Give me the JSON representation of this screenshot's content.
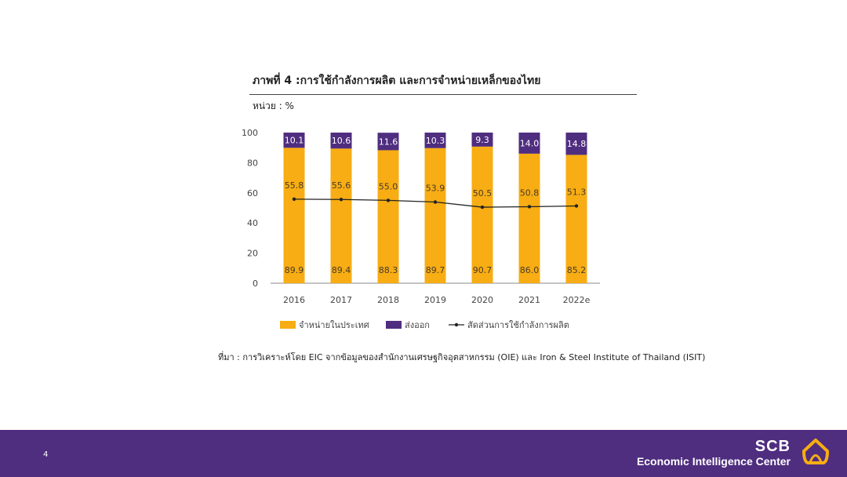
{
  "header": {
    "title": "ภาพที่ 4 :การใช้กำลังการผลิต และการจำหน่ายเหล็กของไทย",
    "unit": "หน่วย : %"
  },
  "source": "ที่มา : การวิเคราะห์โดย EIC จากข้อมูลของสำนักงานเศรษฐกิจอุตสาหกรรม (OIE) และ Iron & Steel Institute of Thailand (ISIT)",
  "footer": {
    "page_number": "4",
    "brand_name": "SCB",
    "brand_subtitle": "Economic Intelligence Center"
  },
  "colors": {
    "domestic": "#f7ad13",
    "export": "#4f2d7f",
    "line": "#222222",
    "footer_bg": "#4f2d7f",
    "logo": "#f7ad13"
  },
  "chart_data": {
    "type": "bar",
    "stacked": true,
    "categories": [
      "2016",
      "2017",
      "2018",
      "2019",
      "2020",
      "2021",
      "2022e"
    ],
    "series": [
      {
        "name": "จำหน่ายในประเทศ",
        "type": "bar",
        "values": [
          89.9,
          89.4,
          88.3,
          89.7,
          90.7,
          86.0,
          85.2
        ]
      },
      {
        "name": "ส่งออก",
        "type": "bar",
        "values": [
          10.1,
          10.6,
          11.6,
          10.3,
          9.3,
          14.0,
          14.8
        ]
      },
      {
        "name": "สัดส่วนการใช้กำลังการผลิต",
        "type": "line",
        "values": [
          55.8,
          55.6,
          55.0,
          53.9,
          50.5,
          50.8,
          51.3
        ]
      }
    ],
    "ylim": [
      0,
      100
    ],
    "yticks": [
      0,
      20,
      40,
      60,
      80,
      100
    ],
    "grid": false,
    "legend": "bottom"
  }
}
